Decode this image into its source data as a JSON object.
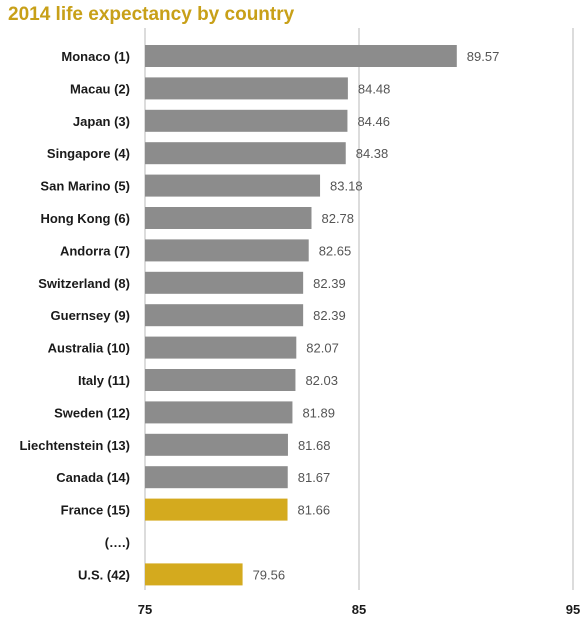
{
  "title": "2014 life expectancy by country",
  "colors": {
    "title": "#c8a018",
    "bar_default": "#8c8c8c",
    "bar_highlight": "#d4aa1e",
    "grid": "#b8b8b8",
    "value_text": "#555555",
    "label_text": "#1a1a1a"
  },
  "chart_data": {
    "type": "bar",
    "orientation": "horizontal",
    "title": "2014 life expectancy by country",
    "xlabel": "",
    "ylabel": "",
    "xlim": [
      75,
      95
    ],
    "xticks": [
      75,
      85,
      95
    ],
    "grid": true,
    "categories": [
      "Monaco (1)",
      "Macau (2)",
      "Japan (3)",
      "Singapore (4)",
      "San Marino (5)",
      "Hong Kong (6)",
      "Andorra (7)",
      "Switzerland (8)",
      "Guernsey (9)",
      "Australia (10)",
      "Italy (11)",
      "Sweden (12)",
      "Liechtenstein (13)",
      "Canada (14)",
      "France (15)",
      "(….)",
      "U.S. (42)"
    ],
    "values": [
      89.57,
      84.48,
      84.46,
      84.38,
      83.18,
      82.78,
      82.65,
      82.39,
      82.39,
      82.07,
      82.03,
      81.89,
      81.68,
      81.67,
      81.66,
      null,
      79.56
    ],
    "value_labels": [
      "89.57",
      "84.48",
      "84.46",
      "84.38",
      "83.18",
      "82.78",
      "82.65",
      "82.39",
      "82.39",
      "82.07",
      "82.03",
      "81.89",
      "81.68",
      "81.67",
      "81.66",
      "",
      "79.56"
    ],
    "highlighted": [
      "France (15)",
      "U.S. (42)"
    ]
  }
}
